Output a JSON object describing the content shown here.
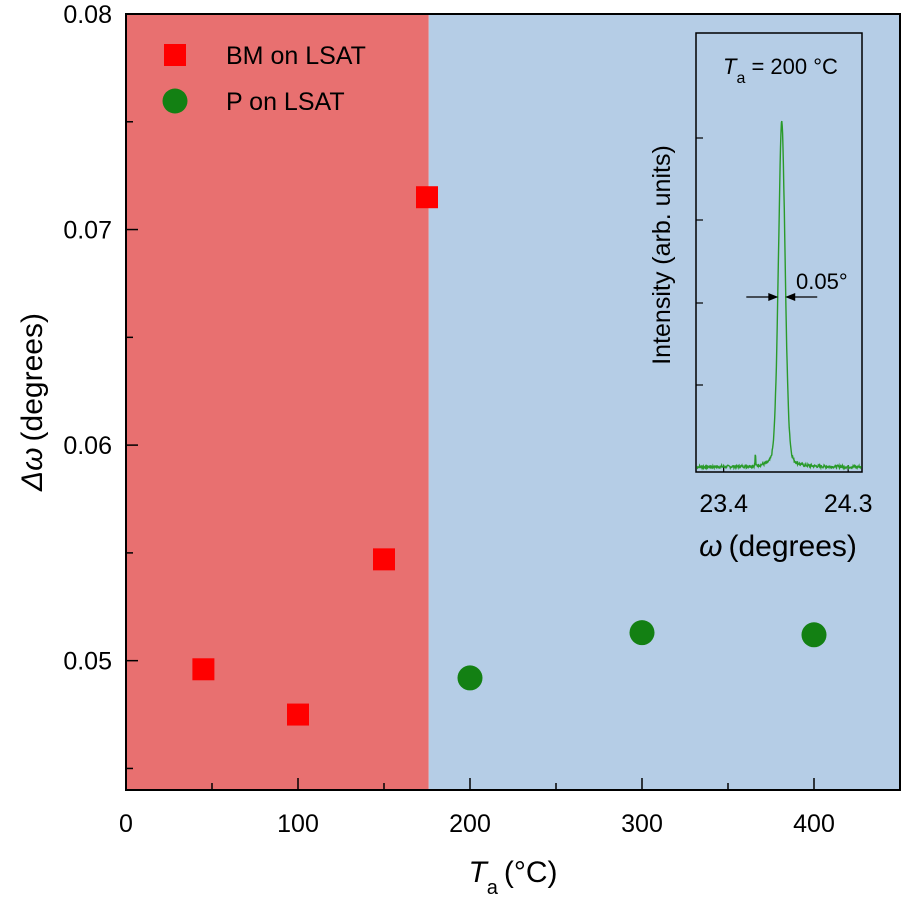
{
  "chart_data": [
    {
      "type": "scatter",
      "title": "",
      "xlabel": {
        "symbol": "T",
        "subscript": "a",
        "unit": "(°C)"
      },
      "ylabel": {
        "symbol": "Δω",
        "unit": "(degrees)"
      },
      "xlim": [
        0,
        450
      ],
      "ylim": [
        0.044,
        0.08
      ],
      "xticks": [
        0,
        100,
        200,
        300,
        400
      ],
      "yticks": [
        0.05,
        0.06,
        0.07,
        0.08
      ],
      "xtick_labels": [
        "0",
        "100",
        "200",
        "300",
        "400"
      ],
      "ytick_labels": [
        "0.05",
        "0.06",
        "0.07",
        "0.08"
      ],
      "regions": [
        {
          "from": 0,
          "to": 176,
          "color": "#e87070"
        },
        {
          "from": 176,
          "to": 450,
          "color": "#b5cde6"
        }
      ],
      "legend_position": "top-left",
      "series": [
        {
          "name": "BM on LSAT",
          "marker": "square",
          "color": "#ff0000",
          "points": [
            {
              "x": 45,
              "y": 0.0496
            },
            {
              "x": 100,
              "y": 0.0475
            },
            {
              "x": 150,
              "y": 0.0547
            },
            {
              "x": 175,
              "y": 0.0715
            }
          ]
        },
        {
          "name": "P on LSAT",
          "marker": "circle",
          "color": "#138013",
          "points": [
            {
              "x": 200,
              "y": 0.0492
            },
            {
              "x": 300,
              "y": 0.0513
            },
            {
              "x": 400,
              "y": 0.0512
            }
          ]
        }
      ]
    },
    {
      "type": "line",
      "inset": true,
      "title": {
        "symbol": "T",
        "subscript": "a",
        "rest": " = 200 °C"
      },
      "xlabel": {
        "symbol": "ω",
        "unit": "(degrees)"
      },
      "ylabel": "Intensity (arb. units)",
      "xlim": [
        23.2,
        24.4
      ],
      "xtick_labels": [
        "23.4",
        "24.3"
      ],
      "xticks": [
        23.4,
        24.3
      ],
      "line_color": "#2a9a2a",
      "peak_center": 23.82,
      "peak_fwhm": 0.05,
      "annotation": "0.05°"
    }
  ]
}
